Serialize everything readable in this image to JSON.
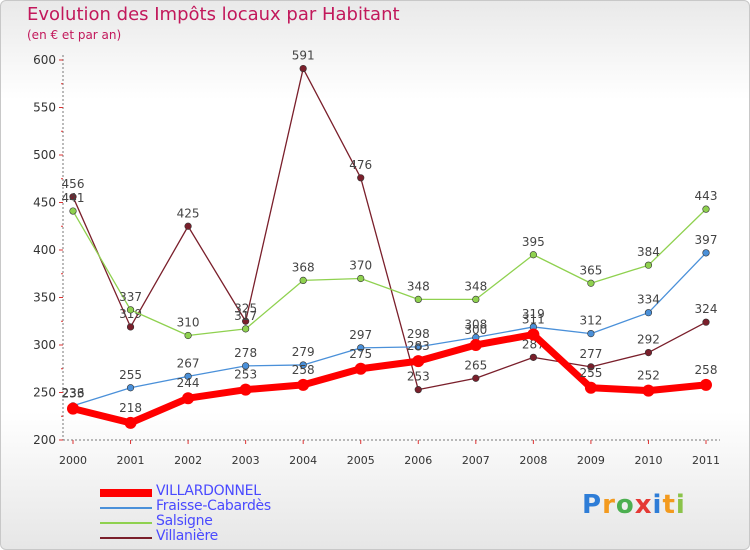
{
  "title": "Evolution des Impôts locaux par Habitant",
  "subtitle": "(en € et par an)",
  "logo": "Proxiti",
  "chart_data": {
    "type": "line",
    "title": "Evolution des Impôts locaux par Habitant",
    "subtitle": "(en € et par an)",
    "xlabel": "",
    "ylabel": "",
    "ylim": [
      200,
      600
    ],
    "yticks": [
      200,
      250,
      300,
      350,
      400,
      450,
      500,
      550,
      600
    ],
    "x": [
      "2000",
      "2001",
      "2002",
      "2003",
      "2004",
      "2005",
      "2006",
      "2007",
      "2008",
      "2009",
      "2010",
      "2011"
    ],
    "legend": "bottom-left",
    "series": [
      {
        "name": "VILLARDONNEL",
        "color": "#ff0000",
        "values": [
          233,
          218,
          244,
          253,
          258,
          275,
          283,
          300,
          311,
          255,
          252,
          258
        ]
      },
      {
        "name": "Fraisse-Cabardès",
        "color": "#4a90d9",
        "values": [
          236,
          255,
          267,
          278,
          279,
          297,
          298,
          308,
          319,
          312,
          334,
          397
        ]
      },
      {
        "name": "Salsigne",
        "color": "#8fd14f",
        "values": [
          441,
          337,
          310,
          317,
          368,
          370,
          348,
          348,
          395,
          365,
          384,
          443
        ]
      },
      {
        "name": "Villanière",
        "color": "#7a1f2b",
        "values": [
          456,
          319,
          425,
          325,
          591,
          476,
          253,
          265,
          287,
          277,
          292,
          324
        ]
      }
    ]
  }
}
